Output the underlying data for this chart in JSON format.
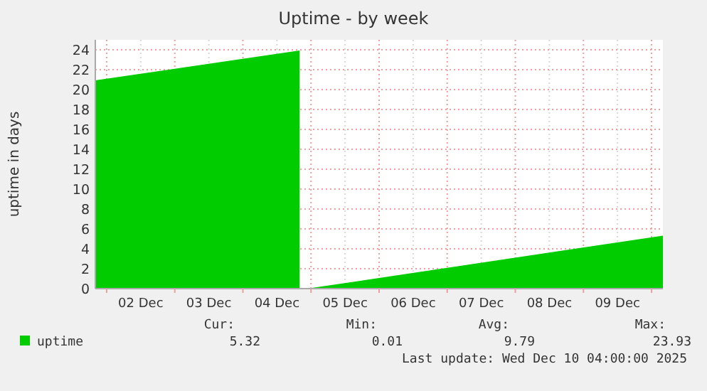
{
  "chart_data": {
    "type": "area",
    "title": "Uptime - by week",
    "ylabel": "uptime in days",
    "x": [
      "2025-12-01T20:00",
      "2025-12-04T20:00",
      "2025-12-04T21:00",
      "2025-12-04T23:00",
      "2025-12-10T04:00"
    ],
    "series": [
      {
        "name": "uptime",
        "color": "#00cc00",
        "values": [
          20.93,
          23.93,
          null,
          0.01,
          5.32
        ]
      }
    ],
    "xlim": [
      "2025-12-01T20:00",
      "2025-12-10T04:00"
    ],
    "xticks": [
      {
        "value": "2025-12-02T00:00",
        "label": null
      },
      {
        "value": "2025-12-02T12:00",
        "label": "02 Dec"
      },
      {
        "value": "2025-12-03T00:00",
        "label": null
      },
      {
        "value": "2025-12-03T12:00",
        "label": "03 Dec"
      },
      {
        "value": "2025-12-04T00:00",
        "label": null
      },
      {
        "value": "2025-12-04T12:00",
        "label": "04 Dec"
      },
      {
        "value": "2025-12-05T00:00",
        "label": null
      },
      {
        "value": "2025-12-05T12:00",
        "label": "05 Dec"
      },
      {
        "value": "2025-12-06T00:00",
        "label": null
      },
      {
        "value": "2025-12-06T12:00",
        "label": "06 Dec"
      },
      {
        "value": "2025-12-07T00:00",
        "label": null
      },
      {
        "value": "2025-12-07T12:00",
        "label": "07 Dec"
      },
      {
        "value": "2025-12-08T00:00",
        "label": null
      },
      {
        "value": "2025-12-08T12:00",
        "label": "08 Dec"
      },
      {
        "value": "2025-12-09T00:00",
        "label": null
      },
      {
        "value": "2025-12-09T12:00",
        "label": "09 Dec"
      },
      {
        "value": "2025-12-10T00:00",
        "label": null
      }
    ],
    "ylim": [
      0,
      25
    ],
    "yticks": [
      0,
      2,
      4,
      6,
      8,
      10,
      12,
      14,
      16,
      18,
      20,
      22,
      24
    ],
    "grid": true,
    "legend": "bottom left",
    "annotations": [
      "Cur:",
      "Min:",
      "Avg:",
      "Max:",
      "5.32",
      "0.01",
      "9.79",
      "23.93",
      "Last update: Wed Dec 10 04:00:00 2025"
    ]
  }
}
